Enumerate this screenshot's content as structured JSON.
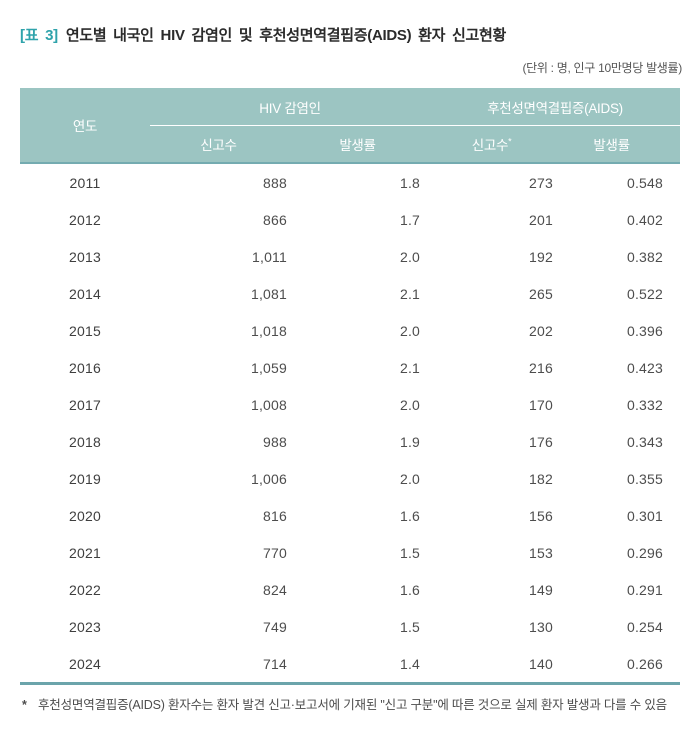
{
  "title": {
    "tag": "[표 3]",
    "text": "연도별 내국인 HIV 감염인 및 후천성면역결핍증(AIDS) 환자 신고현황"
  },
  "unit_note": "(단위 : 명, 인구 10만명당 발생률)",
  "colors": {
    "header_bg": "#9cc5c2",
    "header_bottom_border": "#74abb0",
    "table_bottom_border": "#6ba4ab",
    "title_tag": "#2fa3ab"
  },
  "table": {
    "year_header": "연도",
    "group_headers": {
      "hiv": "HIV 감염인",
      "aids": "후천성면역결핍증(AIDS)"
    },
    "sub_headers": {
      "hiv_reports": "신고수",
      "hiv_rate": "발생률",
      "aids_reports": "신고수",
      "aids_rate": "발생률"
    },
    "asterisk": "*",
    "rows": [
      [
        "2011",
        "888",
        "1.8",
        "273",
        "0.548"
      ],
      [
        "2012",
        "866",
        "1.7",
        "201",
        "0.402"
      ],
      [
        "2013",
        "1,011",
        "2.0",
        "192",
        "0.382"
      ],
      [
        "2014",
        "1,081",
        "2.1",
        "265",
        "0.522"
      ],
      [
        "2015",
        "1,018",
        "2.0",
        "202",
        "0.396"
      ],
      [
        "2016",
        "1,059",
        "2.1",
        "216",
        "0.423"
      ],
      [
        "2017",
        "1,008",
        "2.0",
        "170",
        "0.332"
      ],
      [
        "2018",
        "988",
        "1.9",
        "176",
        "0.343"
      ],
      [
        "2019",
        "1,006",
        "2.0",
        "182",
        "0.355"
      ],
      [
        "2020",
        "816",
        "1.6",
        "156",
        "0.301"
      ],
      [
        "2021",
        "770",
        "1.5",
        "153",
        "0.296"
      ],
      [
        "2022",
        "824",
        "1.6",
        "149",
        "0.291"
      ],
      [
        "2023",
        "749",
        "1.5",
        "130",
        "0.254"
      ],
      [
        "2024",
        "714",
        "1.4",
        "140",
        "0.266"
      ]
    ]
  },
  "footnote": {
    "marker": "*",
    "text": "후천성면역결핍증(AIDS) 환자수는 환자 발견 신고·보고서에 기재된 \"신고 구분\"에 따른 것으로 실제 환자 발생과 다를 수 있음"
  }
}
